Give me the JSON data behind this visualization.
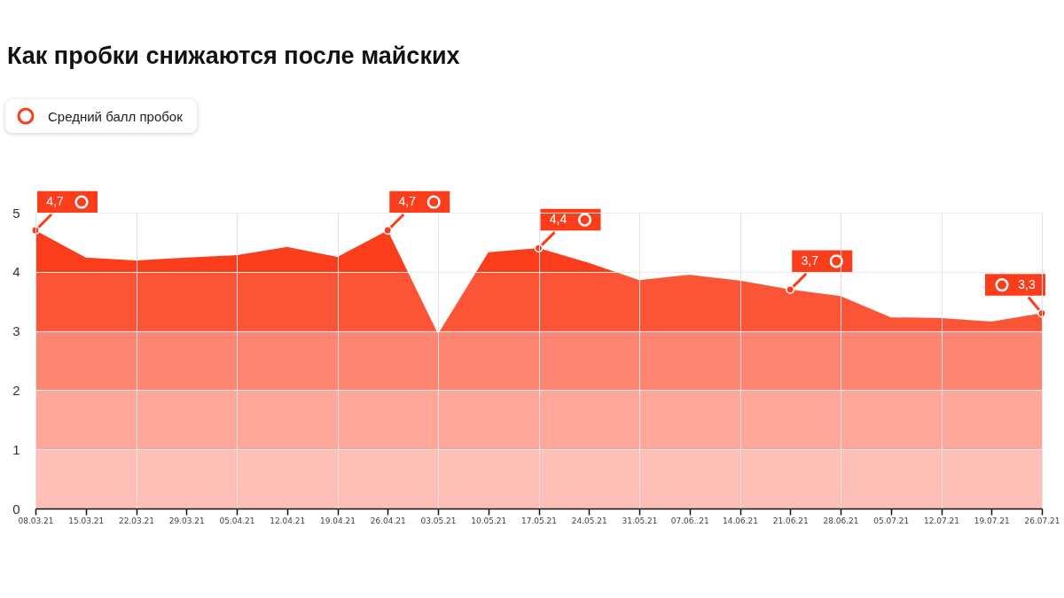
{
  "chart_data": {
    "type": "area",
    "title": "Как пробки снижаются после майских",
    "categories": [
      "08.03.21",
      "15.03.21",
      "22.03.21",
      "29.03.21",
      "05.04.21",
      "12.04.21",
      "19.04.21",
      "26.04.21",
      "03.05.21",
      "10.05.21",
      "17.05.21",
      "24.05.21",
      "31.05.21",
      "07.06..21",
      "14.06.21",
      "21.06.21",
      "28.06.21",
      "05.07.21",
      "12.07.21",
      "19.07.21",
      "26.07.21"
    ],
    "series": [
      {
        "name": "Средний балл пробок",
        "color": "#fc3d1c",
        "values": [
          4.7,
          4.24,
          4.19,
          4.24,
          4.28,
          4.42,
          4.25,
          4.7,
          2.95,
          4.33,
          4.4,
          4.15,
          3.86,
          3.95,
          3.85,
          3.7,
          3.59,
          3.23,
          3.22,
          3.16,
          3.3
        ],
        "value_labels": [
          "4,7",
          null,
          null,
          null,
          null,
          null,
          null,
          "4,7",
          null,
          null,
          "4,4",
          null,
          null,
          null,
          null,
          "3,7",
          null,
          null,
          null,
          null,
          "3,3"
        ]
      }
    ],
    "ylim": [
      0,
      5
    ],
    "yticks": [
      0,
      1,
      2,
      3,
      4,
      5
    ],
    "grid": true,
    "legend": "top left"
  }
}
